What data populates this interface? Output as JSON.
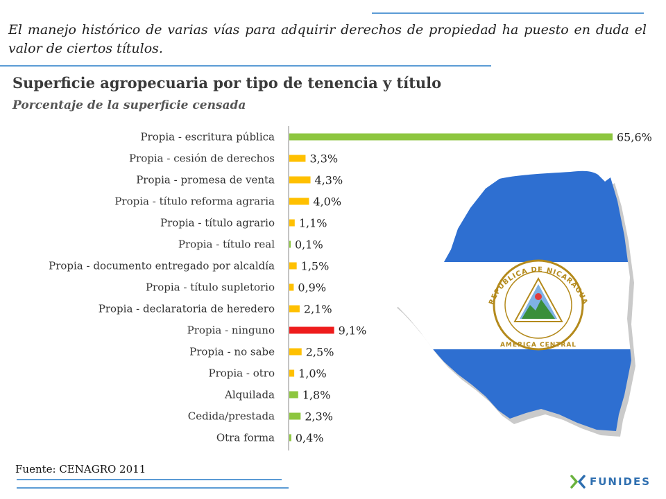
{
  "intro_text": "El manejo histórico de varias vías para adquirir derechos de propiedad ha puesto en duda el valor de ciertos títulos.",
  "source": "Fuente: CENAGRO 2011",
  "logo": {
    "text": "FUNIDES",
    "icon": "funides-x-icon"
  },
  "map": {
    "icon": "nicaragua-flag-map-icon",
    "emblem_text": "REPUBLICA DE NICARAGUA · AMERICA CENTRAL"
  },
  "colors": {
    "green": "#8dc63f",
    "yellow": "#ffc000",
    "red": "#ee1c1c",
    "flag_blue": "#2e6fd1",
    "rule_blue": "#5b9bd5"
  },
  "chart_data": {
    "type": "bar",
    "orientation": "horizontal",
    "title": "Superficie agropecuaria por tipo de tenencia y título",
    "subtitle": "Porcentaje de la superficie censada",
    "unit": "%",
    "xlim": [
      0,
      65.6
    ],
    "categories": [
      "Propia - escritura pública",
      "Propia - cesión de derechos",
      "Propia - promesa de venta",
      "Propia - título reforma agraria",
      "Propia - título agrario",
      "Propia - título real",
      "Propia - documento entregado por alcaldía",
      "Propia - título supletorio",
      "Propia - declaratoria de heredero",
      "Propia - ninguno",
      "Propia - no sabe",
      "Propia - otro",
      "Alquilada",
      "Cedida/prestada",
      "Otra forma"
    ],
    "values": [
      65.6,
      3.3,
      4.3,
      4.0,
      1.1,
      0.1,
      1.5,
      0.9,
      2.1,
      9.1,
      2.5,
      1.0,
      1.8,
      2.3,
      0.4
    ],
    "value_labels": [
      "65,6%",
      "3,3%",
      "4,3%",
      "4,0%",
      "1,1%",
      "0,1%",
      "1,5%",
      "0,9%",
      "2,1%",
      "9,1%",
      "2,5%",
      "1,0%",
      "1,8%",
      "2,3%",
      "0,4%"
    ],
    "bar_colors": [
      "green",
      "yellow",
      "yellow",
      "yellow",
      "yellow",
      "green",
      "yellow",
      "yellow",
      "yellow",
      "red",
      "yellow",
      "yellow",
      "green",
      "green",
      "green"
    ],
    "grid": false,
    "legend": "none"
  }
}
